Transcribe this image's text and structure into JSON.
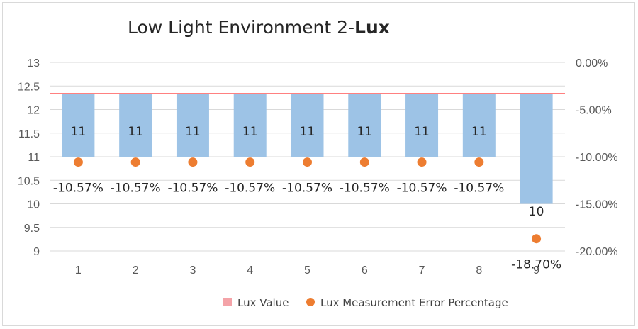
{
  "chart_data": {
    "type": "bar",
    "title": "Low Light Environment 2-",
    "title_bold": "Lux",
    "categories": [
      "1",
      "2",
      "3",
      "4",
      "5",
      "6",
      "7",
      "8",
      "9"
    ],
    "series": [
      {
        "name": "Lux Value",
        "kind": "bar",
        "axis": "left",
        "color": "#9dc3e6",
        "legend_color": "#f4a3a8",
        "values": [
          11,
          11,
          11,
          11,
          11,
          11,
          11,
          11,
          10
        ],
        "labels": [
          "11",
          "11",
          "11",
          "11",
          "11",
          "11",
          "11",
          "11",
          "10"
        ]
      },
      {
        "name": "Lux Measurement Error Percentage",
        "kind": "scatter",
        "axis": "right",
        "color": "#ed7d31",
        "values": [
          -10.57,
          -10.57,
          -10.57,
          -10.57,
          -10.57,
          -10.57,
          -10.57,
          -10.57,
          -18.7
        ],
        "labels": [
          "-10.57%",
          "-10.57%",
          "-10.57%",
          "-10.57%",
          "-10.57%",
          "-10.57%",
          "-10.57%",
          "-10.57%",
          "-18.70%"
        ]
      }
    ],
    "reference_line": {
      "axis": "right",
      "value": -3.33,
      "color": "#ff0000"
    },
    "y_left": {
      "min": 9,
      "max": 13,
      "ticks": [
        "9",
        "9.5",
        "10",
        "10.5",
        "11",
        "11.5",
        "12",
        "12.5",
        "13"
      ]
    },
    "y_right": {
      "min": -20,
      "max": 0,
      "ticks": [
        "-20.00%",
        "-15.00%",
        "-10.00%",
        "-5.00%",
        "0.00%"
      ]
    },
    "bar_base": 11,
    "grid": true,
    "legend": "bottom"
  }
}
